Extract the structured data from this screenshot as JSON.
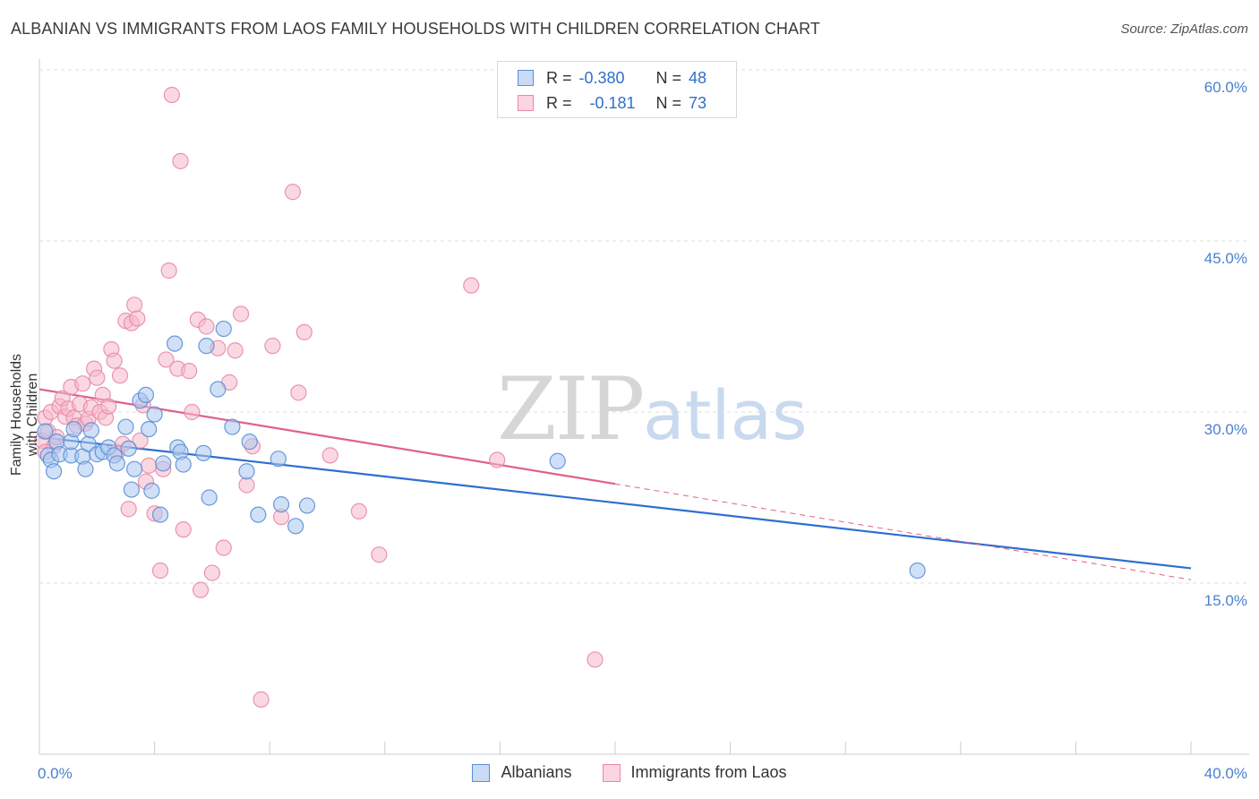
{
  "title": "ALBANIAN VS IMMIGRANTS FROM LAOS FAMILY HOUSEHOLDS WITH CHILDREN CORRELATION CHART",
  "source": "Source: ZipAtlas.com",
  "watermark": {
    "part1": "ZIP",
    "part2": "atlas"
  },
  "legend": {
    "rows": [
      {
        "r_label": "R =",
        "r_value": "-0.380",
        "n_label": "N =",
        "n_value": "48",
        "color": "#a9c6ee"
      },
      {
        "r_label": "R =",
        "r_value": "-0.181",
        "n_label": "N =",
        "n_value": "73",
        "color": "#f6b8cb"
      }
    ]
  },
  "bottom_legend": {
    "albanians": "Albanians",
    "laos": "Immigrants from Laos"
  },
  "colors": {
    "blue_fill": "#a9c6ee",
    "blue_stroke": "#5b8fd6",
    "blue_line": "#2d6fd1",
    "pink_fill": "#f6b8cb",
    "pink_stroke": "#e88aa8",
    "pink_line": "#e0608a",
    "grid": "#dddddd",
    "tick_text": "#4a7fd0"
  },
  "chart_data": {
    "type": "scatter",
    "title": "ALBANIAN VS IMMIGRANTS FROM LAOS FAMILY HOUSEHOLDS WITH CHILDREN CORRELATION CHART",
    "xlabel": "",
    "ylabel": "Family Households with Children",
    "xlim": [
      0,
      40
    ],
    "ylim": [
      0,
      60
    ],
    "x_tick_labels": {
      "left": "0.0%",
      "right": "40.0%"
    },
    "y_ticks": [
      {
        "value": 15,
        "label": "15.0%"
      },
      {
        "value": 30,
        "label": "30.0%"
      },
      {
        "value": 45,
        "label": "45.0%"
      },
      {
        "value": 60,
        "label": "60.0%"
      }
    ],
    "series": [
      {
        "name": "Albanians",
        "color": "#5b8fd6",
        "points": [
          [
            0.2,
            28.3
          ],
          [
            0.3,
            26.2
          ],
          [
            0.4,
            25.8
          ],
          [
            0.5,
            24.8
          ],
          [
            0.6,
            27.4
          ],
          [
            0.7,
            26.3
          ],
          [
            1.1,
            26.2
          ],
          [
            1.1,
            27.4
          ],
          [
            1.2,
            28.5
          ],
          [
            1.5,
            26.1
          ],
          [
            1.6,
            25.0
          ],
          [
            1.7,
            27.2
          ],
          [
            1.8,
            28.4
          ],
          [
            2.0,
            26.3
          ],
          [
            2.2,
            26.5
          ],
          [
            2.4,
            26.9
          ],
          [
            2.6,
            26.2
          ],
          [
            2.7,
            25.5
          ],
          [
            3.0,
            28.7
          ],
          [
            3.1,
            26.8
          ],
          [
            3.2,
            23.2
          ],
          [
            3.3,
            25.0
          ],
          [
            3.5,
            31.0
          ],
          [
            3.7,
            31.5
          ],
          [
            3.8,
            28.5
          ],
          [
            3.9,
            23.1
          ],
          [
            4.0,
            29.8
          ],
          [
            4.2,
            21.0
          ],
          [
            4.3,
            25.5
          ],
          [
            4.7,
            36.0
          ],
          [
            4.8,
            26.9
          ],
          [
            4.9,
            26.5
          ],
          [
            5.0,
            25.4
          ],
          [
            5.7,
            26.4
          ],
          [
            5.8,
            35.8
          ],
          [
            5.9,
            22.5
          ],
          [
            6.2,
            32.0
          ],
          [
            6.4,
            37.3
          ],
          [
            6.7,
            28.7
          ],
          [
            7.2,
            24.8
          ],
          [
            7.3,
            27.4
          ],
          [
            7.6,
            21.0
          ],
          [
            8.3,
            25.9
          ],
          [
            8.4,
            21.9
          ],
          [
            8.9,
            20.0
          ],
          [
            9.3,
            21.8
          ],
          [
            18.0,
            25.7
          ],
          [
            30.5,
            16.1
          ]
        ]
      },
      {
        "name": "Immigrants from Laos",
        "color": "#e88aa8",
        "points": [
          [
            0.1,
            27.5
          ],
          [
            0.2,
            29.5
          ],
          [
            0.3,
            28.3
          ],
          [
            0.4,
            30.0
          ],
          [
            0.5,
            27.0
          ],
          [
            0.6,
            27.8
          ],
          [
            0.7,
            30.5
          ],
          [
            0.8,
            31.2
          ],
          [
            0.9,
            29.6
          ],
          [
            1.0,
            30.3
          ],
          [
            1.1,
            32.2
          ],
          [
            1.2,
            29.5
          ],
          [
            1.3,
            28.8
          ],
          [
            1.4,
            30.7
          ],
          [
            1.5,
            32.5
          ],
          [
            1.6,
            29.0
          ],
          [
            1.7,
            29.4
          ],
          [
            1.8,
            30.4
          ],
          [
            1.9,
            33.8
          ],
          [
            2.0,
            33.0
          ],
          [
            2.1,
            30.0
          ],
          [
            2.2,
            31.5
          ],
          [
            2.3,
            29.5
          ],
          [
            2.4,
            30.5
          ],
          [
            2.5,
            35.5
          ],
          [
            2.6,
            34.5
          ],
          [
            2.7,
            26.5
          ],
          [
            2.8,
            33.2
          ],
          [
            2.9,
            27.2
          ],
          [
            3.0,
            38.0
          ],
          [
            3.1,
            21.5
          ],
          [
            3.2,
            37.8
          ],
          [
            3.3,
            39.4
          ],
          [
            3.4,
            38.2
          ],
          [
            3.5,
            27.5
          ],
          [
            3.6,
            30.6
          ],
          [
            3.7,
            23.9
          ],
          [
            3.8,
            25.3
          ],
          [
            4.0,
            21.1
          ],
          [
            4.2,
            16.1
          ],
          [
            4.3,
            25.0
          ],
          [
            4.4,
            34.6
          ],
          [
            4.5,
            42.4
          ],
          [
            4.6,
            57.8
          ],
          [
            4.8,
            33.8
          ],
          [
            4.9,
            52.0
          ],
          [
            5.0,
            19.7
          ],
          [
            5.2,
            33.6
          ],
          [
            5.3,
            30.0
          ],
          [
            5.5,
            38.1
          ],
          [
            5.6,
            14.4
          ],
          [
            5.8,
            37.5
          ],
          [
            6.0,
            15.9
          ],
          [
            6.2,
            35.6
          ],
          [
            6.4,
            18.1
          ],
          [
            6.6,
            32.6
          ],
          [
            6.8,
            35.4
          ],
          [
            7.0,
            38.6
          ],
          [
            7.2,
            23.6
          ],
          [
            7.4,
            27.0
          ],
          [
            7.7,
            4.8
          ],
          [
            8.1,
            35.8
          ],
          [
            8.4,
            20.8
          ],
          [
            8.8,
            49.3
          ],
          [
            9.0,
            31.7
          ],
          [
            9.2,
            37.0
          ],
          [
            10.1,
            26.2
          ],
          [
            11.1,
            21.3
          ],
          [
            11.8,
            17.5
          ],
          [
            15.0,
            41.1
          ],
          [
            15.9,
            25.8
          ],
          [
            19.3,
            8.3
          ],
          [
            0.2,
            26.5
          ]
        ]
      }
    ],
    "trendlines": [
      {
        "series": "Albanians",
        "x": [
          0,
          40
        ],
        "y": [
          27.8,
          16.3
        ],
        "style": "solid"
      },
      {
        "series": "Immigrants from Laos",
        "x": [
          0,
          20
        ],
        "y": [
          32.0,
          23.7
        ],
        "style": "solid"
      },
      {
        "series": "Immigrants from Laos",
        "x": [
          20,
          40
        ],
        "y": [
          23.7,
          15.3
        ],
        "style": "dashed"
      }
    ]
  }
}
